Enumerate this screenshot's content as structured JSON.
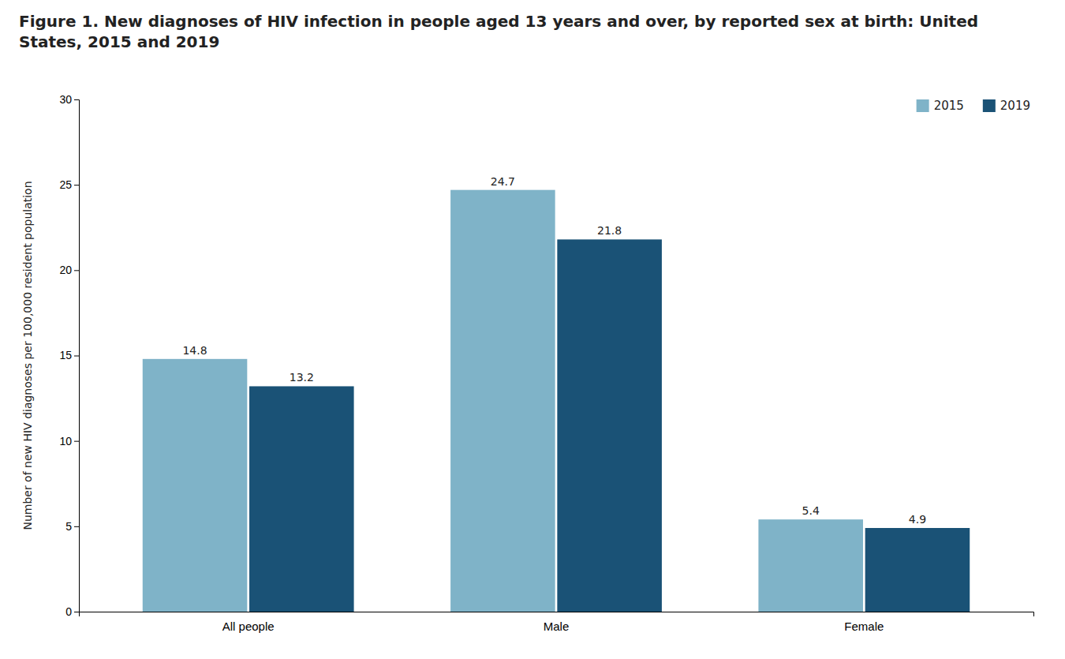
{
  "chart_data": {
    "type": "bar",
    "title": "Figure 1. New diagnoses of HIV infection in people aged 13 years and over, by reported sex at birth: United States, 2015 and 2019",
    "categories": [
      "All people",
      "Male",
      "Female"
    ],
    "series": [
      {
        "name": "2015",
        "color": "#7fb3c8",
        "values": [
          14.8,
          24.7,
          5.4
        ]
      },
      {
        "name": "2019",
        "color": "#1a5276",
        "values": [
          13.2,
          21.8,
          4.9
        ]
      }
    ],
    "ylabel": "Number of new HIV diagnoses per 100,000 resident population",
    "ylim": [
      0,
      30
    ],
    "yticks": [
      0,
      5,
      10,
      15,
      20,
      25,
      30
    ],
    "grid": false,
    "legend": "top-right",
    "data_labels": true
  }
}
